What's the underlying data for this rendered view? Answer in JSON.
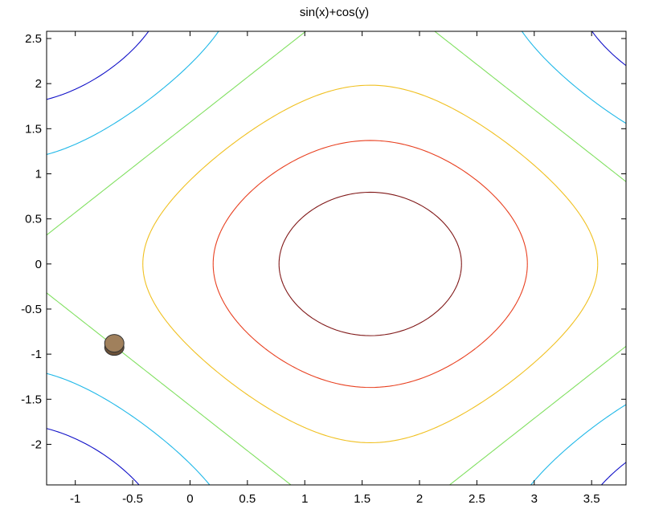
{
  "chart_data": {
    "type": "contour",
    "title": "sin(x)+cos(y)",
    "xlabel": "",
    "ylabel": "",
    "xlim": [
      -1.25,
      3.8
    ],
    "ylim": [
      -2.45,
      2.58
    ],
    "xticks": [
      -1,
      -0.5,
      0,
      0.5,
      1,
      1.5,
      2,
      2.5,
      3,
      3.5
    ],
    "xtick_labels": [
      "-1",
      "-0.5",
      "0",
      "0.5",
      "1",
      "1.5",
      "2",
      "2.5",
      "3",
      "3.5"
    ],
    "yticks": [
      -2,
      -1.5,
      -1,
      -0.5,
      0,
      0.5,
      1,
      1.5,
      2,
      2.5
    ],
    "ytick_labels": [
      "-2",
      "-1.5",
      "-1",
      "-0.5",
      "0",
      "0.5",
      "1",
      "1.5",
      "2",
      "2.5"
    ],
    "grid": false,
    "function": "sin(x)+cos(y)",
    "contour_levels": [
      {
        "level": -1.2,
        "color": "#1010c8"
      },
      {
        "level": -0.6,
        "color": "#20b8e8"
      },
      {
        "level": 0.0,
        "color": "#80e060"
      },
      {
        "level": 0.6,
        "color": "#f0c020"
      },
      {
        "level": 1.2,
        "color": "#e84020"
      },
      {
        "level": 1.7,
        "color": "#801818"
      }
    ],
    "marker": {
      "x": -0.66,
      "y": -0.88,
      "color": "#a0805c"
    }
  }
}
